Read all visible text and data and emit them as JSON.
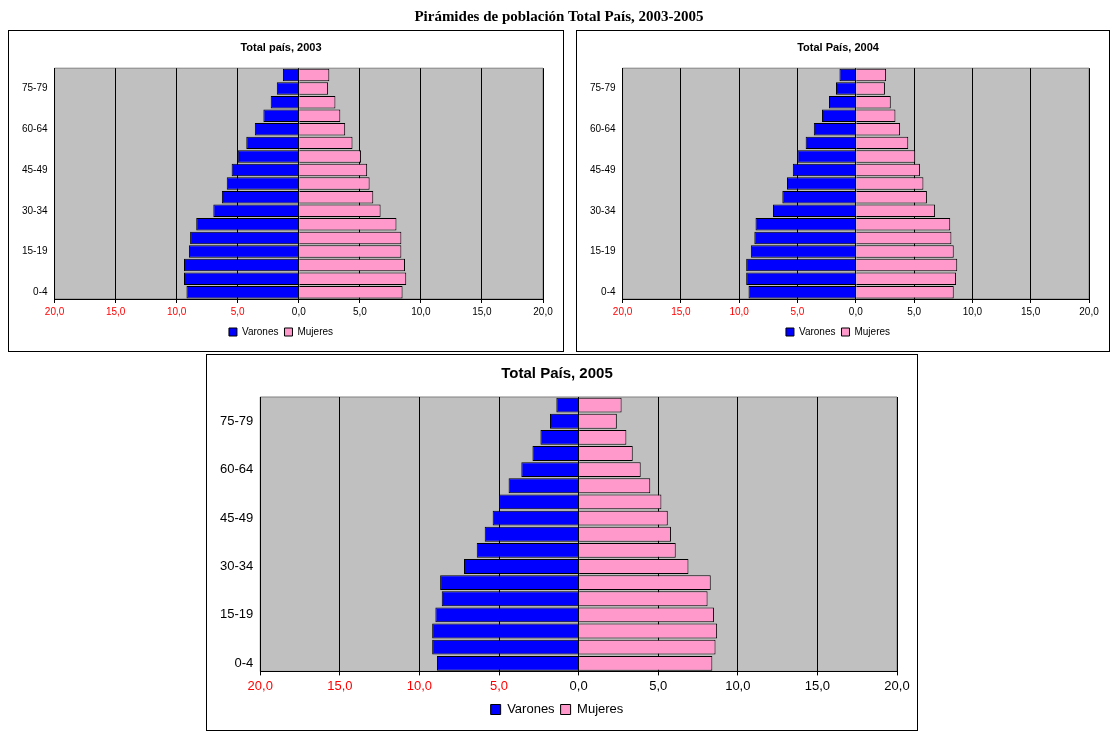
{
  "chart_data": [
    {
      "type": "bar",
      "orientation": "horizontal",
      "stacked": true,
      "title": "Total país, 2003",
      "annotations": [
        "Pirámides de población Total País, 2003-2005"
      ],
      "categories": [
        null,
        "75-79",
        null,
        null,
        "60-64",
        null,
        null,
        "45-49",
        null,
        null,
        "30-34",
        null,
        null,
        "15-19",
        null,
        null,
        "0-4"
      ],
      "series": [
        {
          "name": "Varones",
          "color": "#0000ff",
          "values": [
            -1.3,
            -1.8,
            -2.3,
            -2.9,
            -3.6,
            -4.3,
            -5.0,
            -5.5,
            -5.9,
            -6.3,
            -7.0,
            -8.4,
            -8.9,
            -9.0,
            -9.4,
            -9.4,
            -9.2
          ]
        },
        {
          "name": "Mujeres",
          "color": "#ff99cc",
          "values": [
            2.5,
            2.4,
            3.0,
            3.4,
            3.8,
            4.4,
            5.1,
            5.6,
            5.8,
            6.1,
            6.7,
            8.0,
            8.4,
            8.4,
            8.7,
            8.8,
            8.5
          ]
        }
      ],
      "xlim": [
        -20,
        20
      ],
      "xticks": [
        {
          "value": -20,
          "label": "20,0"
        },
        {
          "value": -15,
          "label": "15,0"
        },
        {
          "value": -10,
          "label": "10,0"
        },
        {
          "value": -5,
          "label": "5,0"
        },
        {
          "value": 0,
          "label": "0,0"
        },
        {
          "value": 5,
          "label": "5,0"
        },
        {
          "value": 10,
          "label": "10,0"
        },
        {
          "value": 15,
          "label": "15,0"
        },
        {
          "value": 20,
          "label": "20,0"
        }
      ],
      "grid": "x",
      "legend": "bottom"
    },
    {
      "type": "bar",
      "orientation": "horizontal",
      "stacked": true,
      "title": "Total País, 2004",
      "categories": [
        null,
        "75-79",
        null,
        null,
        "60-64",
        null,
        null,
        "45-49",
        null,
        null,
        "30-34",
        null,
        null,
        "15-19",
        null,
        null,
        "0-4"
      ],
      "series": [
        {
          "name": "Varones",
          "color": "#0000ff",
          "values": [
            -1.4,
            -1.7,
            -2.3,
            -2.9,
            -3.6,
            -4.3,
            -5.0,
            -5.4,
            -5.9,
            -6.3,
            -7.1,
            -8.6,
            -8.7,
            -9.0,
            -9.4,
            -9.4,
            -9.2
          ]
        },
        {
          "name": "Mujeres",
          "color": "#ff99cc",
          "values": [
            2.6,
            2.5,
            3.0,
            3.4,
            3.8,
            4.5,
            5.1,
            5.5,
            5.8,
            6.1,
            6.8,
            8.1,
            8.2,
            8.4,
            8.7,
            8.6,
            8.4
          ]
        }
      ],
      "xlim": [
        -20,
        20
      ],
      "xticks": [
        {
          "value": -20,
          "label": "20,0"
        },
        {
          "value": -15,
          "label": "15,0"
        },
        {
          "value": -10,
          "label": "10,0"
        },
        {
          "value": -5,
          "label": "5,0"
        },
        {
          "value": 0,
          "label": "0,0"
        },
        {
          "value": 5,
          "label": "5,0"
        },
        {
          "value": 10,
          "label": "10,0"
        },
        {
          "value": 15,
          "label": "15,0"
        },
        {
          "value": 20,
          "label": "20,0"
        }
      ],
      "grid": "x",
      "legend": "bottom"
    },
    {
      "type": "bar",
      "orientation": "horizontal",
      "stacked": true,
      "title": "Total País, 2005",
      "categories": [
        null,
        "75-79",
        null,
        null,
        "60-64",
        null,
        null,
        "45-49",
        null,
        null,
        "30-34",
        null,
        null,
        "15-19",
        null,
        null,
        "0-4"
      ],
      "series": [
        {
          "name": "Varones",
          "color": "#0000ff",
          "values": [
            -1.4,
            -1.8,
            -2.4,
            -2.9,
            -3.6,
            -4.4,
            -5.0,
            -5.4,
            -5.9,
            -6.4,
            -7.2,
            -8.7,
            -8.6,
            -9.0,
            -9.2,
            -9.2,
            -8.9
          ]
        },
        {
          "name": "Mujeres",
          "color": "#ff99cc",
          "values": [
            2.7,
            2.4,
            3.0,
            3.4,
            3.9,
            4.5,
            5.2,
            5.6,
            5.8,
            6.1,
            6.9,
            8.3,
            8.1,
            8.5,
            8.7,
            8.6,
            8.4
          ]
        }
      ],
      "xlim": [
        -20,
        20
      ],
      "xticks": [
        {
          "value": -20,
          "label": "20,0"
        },
        {
          "value": -15,
          "label": "15,0"
        },
        {
          "value": -10,
          "label": "10,0"
        },
        {
          "value": -5,
          "label": "5,0"
        },
        {
          "value": 0,
          "label": "0,0"
        },
        {
          "value": 5,
          "label": "5,0"
        },
        {
          "value": 10,
          "label": "10,0"
        },
        {
          "value": 15,
          "label": "15,0"
        },
        {
          "value": 20,
          "label": "20,0"
        }
      ],
      "grid": "x",
      "legend": "bottom"
    }
  ]
}
